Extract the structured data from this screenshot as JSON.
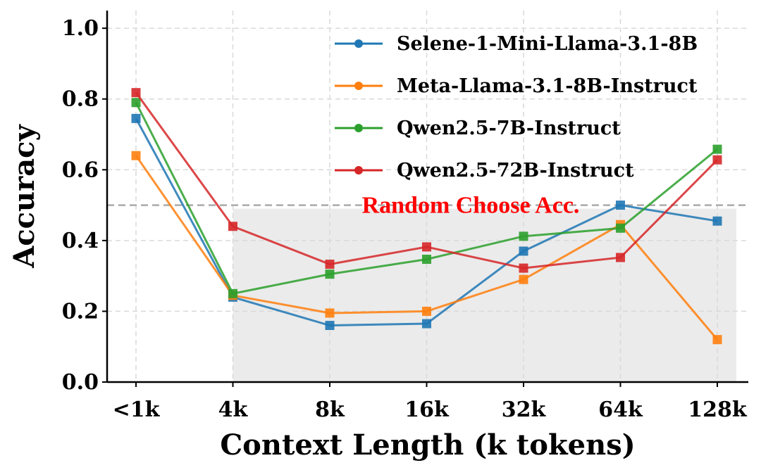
{
  "chart_data": {
    "type": "line",
    "xlabel": "Context Length (k tokens)",
    "ylabel": "Accuracy",
    "categories": [
      "<1k",
      "4k",
      "8k",
      "16k",
      "32k",
      "64k",
      "128k"
    ],
    "ylim": [
      0.0,
      1.05
    ],
    "yticks": [
      "0.0",
      "0.2",
      "0.4",
      "0.6",
      "0.8",
      "1.0"
    ],
    "grid": true,
    "legend_position": "top-right",
    "shaded_region": {
      "from_category": "4k",
      "to_category": "128k",
      "y_top": 0.5,
      "color": "#ebebeb"
    },
    "reference_line": {
      "y": 0.5,
      "label": "Random Choose Acc.",
      "label_color": "#ff0000",
      "line_color": "#aaaaaa"
    },
    "series": [
      {
        "name": "Selene-1-Mini-Llama-3.1-8B",
        "color": "#1f77b4",
        "values": [
          0.745,
          0.24,
          0.16,
          0.165,
          0.37,
          0.5,
          0.455
        ]
      },
      {
        "name": "Meta-Llama-3.1-8B-Instruct",
        "color": "#ff7f0e",
        "values": [
          0.64,
          0.245,
          0.195,
          0.2,
          0.29,
          0.445,
          0.12
        ]
      },
      {
        "name": "Qwen2.5-7B-Instruct",
        "color": "#2ca02c",
        "values": [
          0.79,
          0.25,
          0.305,
          0.347,
          0.412,
          0.435,
          0.658
        ]
      },
      {
        "name": "Qwen2.5-72B-Instruct",
        "color": "#d62728",
        "values": [
          0.818,
          0.44,
          0.333,
          0.382,
          0.322,
          0.352,
          0.628
        ]
      }
    ]
  }
}
